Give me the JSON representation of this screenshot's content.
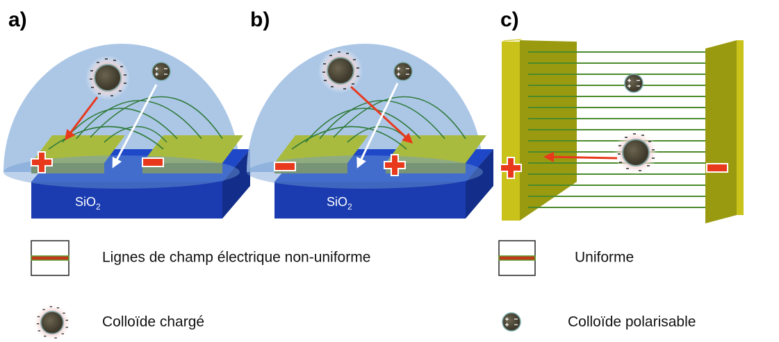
{
  "panels": [
    {
      "label": "a)",
      "substrate": {
        "text": "SiO",
        "subscript": "2"
      }
    },
    {
      "label": "b)",
      "substrate": {
        "text": "SiO",
        "subscript": "2"
      }
    },
    {
      "label": "c)"
    }
  ],
  "legend": [
    {
      "label": "Lignes de champ électrique non-uniforme"
    },
    {
      "label": "Uniforme"
    },
    {
      "label": "Colloïde chargé"
    },
    {
      "label": "Colloïde polarisable"
    }
  ]
}
